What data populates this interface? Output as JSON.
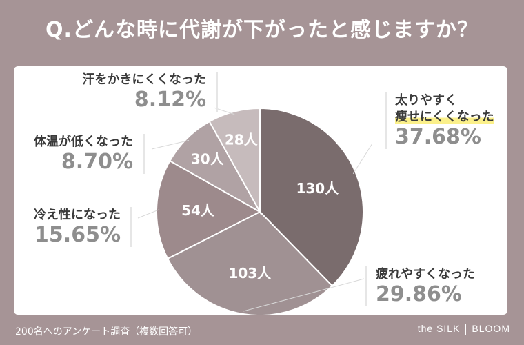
{
  "title": "Q.どんな時に代謝が下がったと感じますか？",
  "footer": "200名へのアンケート調査（複数回答可）",
  "brand": {
    "left": "the SILK",
    "right": "BLOOM"
  },
  "colors": {
    "background": "#a69496",
    "slice1": "#7a6c6d",
    "slice2": "#a09193",
    "slice3": "#9d8a8c",
    "slice4": "#b0a2a4",
    "slice5": "#c6bbbc",
    "highlight": "#fbf08a"
  },
  "chart_data": {
    "type": "pie",
    "start": "12 o'clock, clockwise",
    "slices": [
      {
        "category_lines": [
          "太りやすく",
          "痩せにくくなった"
        ],
        "count_label": "130人",
        "value": 130,
        "percent_label": "37.68%",
        "color": "#7a6c6d"
      },
      {
        "category_lines": [
          "疲れやすくなった"
        ],
        "count_label": "103人",
        "value": 103,
        "percent_label": "29.86%",
        "color": "#a09193"
      },
      {
        "category_lines": [
          "冷え性になった"
        ],
        "count_label": "54人",
        "value": 54,
        "percent_label": "15.65%",
        "color": "#9d8a8c"
      },
      {
        "category_lines": [
          "体温が低くなった"
        ],
        "count_label": "30人",
        "value": 30,
        "percent_label": "8.70%",
        "color": "#b0a2a4"
      },
      {
        "category_lines": [
          "汗をかきにくくなった"
        ],
        "count_label": "28人",
        "value": 28,
        "percent_label": "8.12%",
        "color": "#c6bbbc"
      }
    ]
  }
}
